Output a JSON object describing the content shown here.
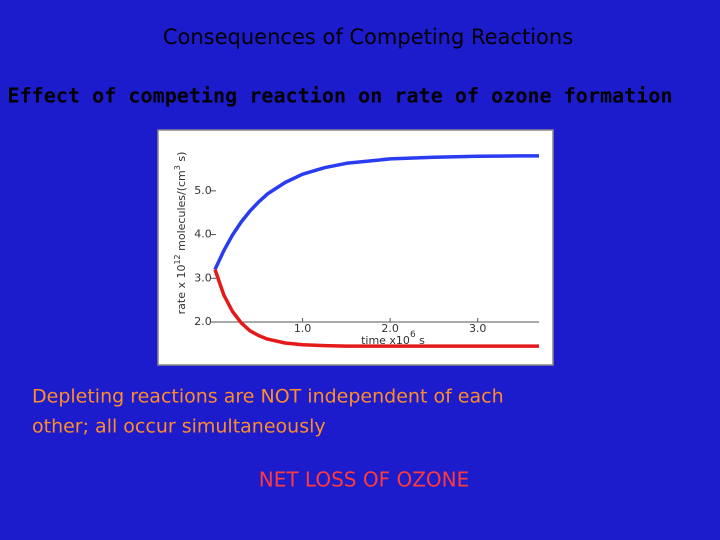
{
  "slide_title": "Consequences of Competing Reactions",
  "subtitle": "Effect of competing reaction on rate of ozone formation",
  "chart_data": {
    "type": "line",
    "y_label": {
      "parts": [
        "rate x 10",
        "12",
        " molecules/(cm",
        "3",
        " s)"
      ]
    },
    "x_label": {
      "parts": [
        "time x10",
        "6",
        " s"
      ]
    },
    "x": [
      0,
      0.1,
      0.2,
      0.3,
      0.4,
      0.5,
      0.6,
      0.8,
      1.0,
      1.25,
      1.5,
      2.0,
      2.5,
      3.0,
      3.5,
      3.7
    ],
    "series": [
      {
        "color": "#2a3cf0",
        "values": [
          3.2,
          3.63,
          3.99,
          4.29,
          4.54,
          4.75,
          4.93,
          5.19,
          5.38,
          5.53,
          5.63,
          5.73,
          5.77,
          5.79,
          5.8,
          5.8
        ]
      },
      {
        "color": "#e41a1a",
        "values": [
          3.2,
          2.62,
          2.24,
          1.98,
          1.8,
          1.69,
          1.61,
          1.52,
          1.48,
          1.46,
          1.45,
          1.45,
          1.45,
          1.45,
          1.45,
          1.45
        ]
      }
    ],
    "xlim": [
      0,
      3.7
    ],
    "ylim": [
      1.2,
      6.3
    ],
    "xticks": [
      {
        "value": 1,
        "label": "1.0"
      },
      {
        "value": 2,
        "label": "2.0"
      },
      {
        "value": 3,
        "label": "3.0"
      }
    ],
    "yticks": [
      {
        "value": 2,
        "label": "2.0"
      },
      {
        "value": 3,
        "label": "3.0"
      },
      {
        "value": 4,
        "label": "4.0"
      },
      {
        "value": 5,
        "label": "5.0"
      }
    ]
  },
  "note_lines": [
    "Depleting reactions are NOT independent of each",
    "other; all occur simultaneously"
  ],
  "conclusion": "NET LOSS OF OZONE"
}
